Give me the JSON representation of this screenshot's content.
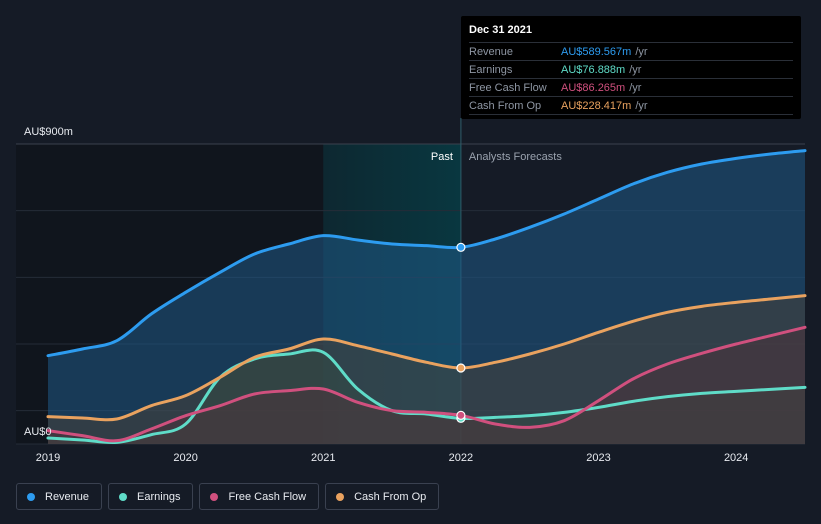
{
  "chart_data": {
    "type": "area",
    "ylabel_top": "AU$900m",
    "ylabel_bottom": "AU$0",
    "ylim": [
      0,
      900
    ],
    "xlim": [
      2019,
      2024.5
    ],
    "x_ticks": [
      {
        "value": 2019,
        "label": "2019"
      },
      {
        "value": 2020,
        "label": "2020"
      },
      {
        "value": 2021,
        "label": "2021"
      },
      {
        "value": 2022,
        "label": "2022"
      },
      {
        "value": 2023,
        "label": "2023"
      },
      {
        "value": 2024,
        "label": "2024"
      }
    ],
    "divider_x": 2022,
    "past_label": "Past",
    "forecast_label": "Analysts Forecasts",
    "grid": true,
    "legend_position": "bottom-left",
    "series": [
      {
        "name": "Revenue",
        "color": "#2d9cf0",
        "fill": "#1f5a87",
        "x": [
          2019,
          2019.25,
          2019.5,
          2019.75,
          2020,
          2020.25,
          2020.5,
          2020.75,
          2021,
          2021.25,
          2021.5,
          2021.75,
          2022,
          2022.25,
          2022.5,
          2022.75,
          2023,
          2023.25,
          2023.5,
          2023.75,
          2024,
          2024.25,
          2024.5
        ],
        "y": [
          265,
          285,
          310,
          390,
          455,
          515,
          570,
          600,
          625,
          612,
          600,
          595,
          590,
          615,
          650,
          690,
          735,
          780,
          815,
          840,
          857,
          870,
          880
        ]
      },
      {
        "name": "Earnings",
        "color": "#5fdcc8",
        "fill": "#1d5550",
        "x": [
          2019,
          2019.25,
          2019.5,
          2019.75,
          2020,
          2020.25,
          2020.5,
          2020.75,
          2021,
          2021.25,
          2021.5,
          2021.75,
          2022,
          2022.25,
          2022.5,
          2022.75,
          2023,
          2023.25,
          2023.5,
          2023.75,
          2024,
          2024.25,
          2024.5
        ],
        "y": [
          18,
          12,
          5,
          28,
          60,
          200,
          255,
          270,
          275,
          165,
          100,
          90,
          77,
          80,
          85,
          95,
          110,
          128,
          142,
          152,
          158,
          164,
          170
        ]
      },
      {
        "name": "Free Cash Flow",
        "color": "#d0507e",
        "fill": "#55233d",
        "x": [
          2019,
          2019.25,
          2019.5,
          2019.75,
          2020,
          2020.25,
          2020.5,
          2020.75,
          2021,
          2021.25,
          2021.5,
          2021.75,
          2022,
          2022.25,
          2022.5,
          2022.75,
          2023,
          2023.25,
          2023.5,
          2023.75,
          2024,
          2024.25,
          2024.5
        ],
        "y": [
          40,
          25,
          10,
          45,
          85,
          115,
          150,
          160,
          165,
          125,
          100,
          95,
          86,
          60,
          50,
          70,
          130,
          195,
          240,
          272,
          300,
          325,
          350
        ]
      },
      {
        "name": "Cash From Op",
        "color": "#e9a25f",
        "fill": "#4f4332",
        "x": [
          2019,
          2019.25,
          2019.5,
          2019.75,
          2020,
          2020.25,
          2020.5,
          2020.75,
          2021,
          2021.25,
          2021.5,
          2021.75,
          2022,
          2022.25,
          2022.5,
          2022.75,
          2023,
          2023.25,
          2023.5,
          2023.75,
          2024,
          2024.25,
          2024.5
        ],
        "y": [
          82,
          78,
          75,
          115,
          145,
          200,
          260,
          285,
          315,
          295,
          270,
          245,
          228,
          245,
          270,
          300,
          335,
          368,
          395,
          413,
          425,
          435,
          445
        ]
      }
    ]
  },
  "tooltip": {
    "date": "Dec 31 2021",
    "unit": "/yr",
    "rows": [
      {
        "name": "Revenue",
        "value": "AU$589.567m",
        "color": "#2d9cf0"
      },
      {
        "name": "Earnings",
        "value": "AU$76.888m",
        "color": "#5fdcc8"
      },
      {
        "name": "Free Cash Flow",
        "value": "AU$86.265m",
        "color": "#d0507e"
      },
      {
        "name": "Cash From Op",
        "value": "AU$228.417m",
        "color": "#e9a25f"
      }
    ]
  },
  "legend": [
    {
      "name": "Revenue",
      "color": "#2d9cf0"
    },
    {
      "name": "Earnings",
      "color": "#5fdcc8"
    },
    {
      "name": "Free Cash Flow",
      "color": "#d0507e"
    },
    {
      "name": "Cash From Op",
      "color": "#e9a25f"
    }
  ]
}
